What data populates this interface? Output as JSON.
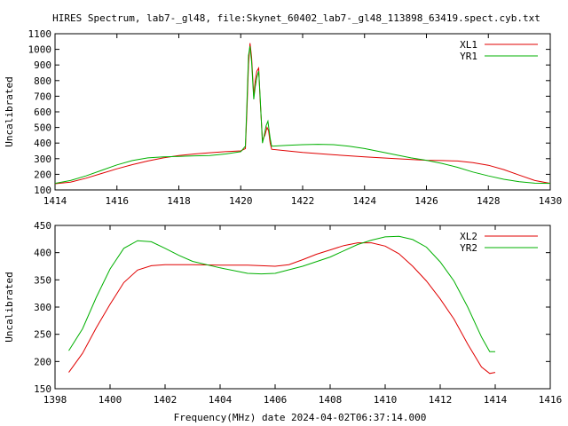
{
  "title": "HIRES Spectrum, lab7-_gl48, file:Skynet_60402_lab7-_gl48_113898_63419.spect.cyb.txt",
  "xlabel": "Frequency(MHz) date 2024-04-02T06:37:14.000",
  "colors": {
    "red": "#e00000",
    "green": "#00b000"
  },
  "chart_data": [
    {
      "type": "line",
      "ylabel": "Uncalibrated",
      "xlim": [
        1414,
        1430
      ],
      "ylim": [
        100,
        1100
      ],
      "xticks": [
        1414,
        1416,
        1418,
        1420,
        1422,
        1424,
        1426,
        1428,
        1430
      ],
      "yticks": [
        100,
        200,
        300,
        400,
        500,
        600,
        700,
        800,
        900,
        1000,
        1100
      ],
      "legend": "top-right",
      "series": [
        {
          "name": "XL1",
          "color": "#e00000",
          "points": [
            [
              1414.0,
              140
            ],
            [
              1414.5,
              150
            ],
            [
              1415,
              175
            ],
            [
              1415.5,
              205
            ],
            [
              1416,
              235
            ],
            [
              1416.5,
              262
            ],
            [
              1417,
              285
            ],
            [
              1417.5,
              305
            ],
            [
              1418,
              320
            ],
            [
              1418.5,
              330
            ],
            [
              1419,
              338
            ],
            [
              1419.5,
              345
            ],
            [
              1420.0,
              350
            ],
            [
              1420.15,
              365
            ],
            [
              1420.2,
              600
            ],
            [
              1420.25,
              900
            ],
            [
              1420.3,
              1040
            ],
            [
              1420.35,
              950
            ],
            [
              1420.42,
              700
            ],
            [
              1420.47,
              800
            ],
            [
              1420.52,
              860
            ],
            [
              1420.58,
              880
            ],
            [
              1420.62,
              700
            ],
            [
              1420.7,
              420
            ],
            [
              1420.78,
              450
            ],
            [
              1420.85,
              500
            ],
            [
              1420.9,
              480
            ],
            [
              1420.95,
              400
            ],
            [
              1421.0,
              360
            ],
            [
              1421.5,
              350
            ],
            [
              1422,
              340
            ],
            [
              1423,
              325
            ],
            [
              1424,
              312
            ],
            [
              1425,
              300
            ],
            [
              1426,
              290
            ],
            [
              1426.5,
              288
            ],
            [
              1427,
              285
            ],
            [
              1427.5,
              275
            ],
            [
              1428,
              258
            ],
            [
              1428.5,
              230
            ],
            [
              1429,
              195
            ],
            [
              1429.5,
              160
            ],
            [
              1430,
              142
            ]
          ]
        },
        {
          "name": "YR1",
          "color": "#00b000",
          "points": [
            [
              1414.0,
              142
            ],
            [
              1414.5,
              160
            ],
            [
              1415,
              190
            ],
            [
              1415.5,
              225
            ],
            [
              1416,
              260
            ],
            [
              1416.5,
              288
            ],
            [
              1417,
              305
            ],
            [
              1417.5,
              312
            ],
            [
              1418,
              315
            ],
            [
              1418.5,
              318
            ],
            [
              1419,
              320
            ],
            [
              1419.5,
              330
            ],
            [
              1420.0,
              345
            ],
            [
              1420.15,
              380
            ],
            [
              1420.2,
              650
            ],
            [
              1420.25,
              960
            ],
            [
              1420.3,
              1020
            ],
            [
              1420.35,
              920
            ],
            [
              1420.42,
              680
            ],
            [
              1420.47,
              760
            ],
            [
              1420.52,
              820
            ],
            [
              1420.58,
              860
            ],
            [
              1420.62,
              720
            ],
            [
              1420.7,
              400
            ],
            [
              1420.75,
              440
            ],
            [
              1420.82,
              510
            ],
            [
              1420.88,
              540
            ],
            [
              1420.95,
              430
            ],
            [
              1421.0,
              380
            ],
            [
              1421.5,
              385
            ],
            [
              1422,
              390
            ],
            [
              1422.5,
              392
            ],
            [
              1423,
              390
            ],
            [
              1423.5,
              380
            ],
            [
              1424,
              365
            ],
            [
              1424.5,
              345
            ],
            [
              1425,
              325
            ],
            [
              1425.5,
              305
            ],
            [
              1426,
              290
            ],
            [
              1426.5,
              270
            ],
            [
              1427,
              245
            ],
            [
              1427.5,
              215
            ],
            [
              1428,
              190
            ],
            [
              1428.5,
              168
            ],
            [
              1429,
              152
            ],
            [
              1429.5,
              143
            ],
            [
              1430,
              142
            ]
          ]
        }
      ]
    },
    {
      "type": "line",
      "ylabel": "Uncalibrated",
      "xlim": [
        1398,
        1416
      ],
      "ylim": [
        150,
        450
      ],
      "xticks": [
        1398,
        1400,
        1402,
        1404,
        1406,
        1408,
        1410,
        1412,
        1414,
        1416
      ],
      "yticks": [
        150,
        200,
        250,
        300,
        350,
        400,
        450
      ],
      "legend": "top-right",
      "series": [
        {
          "name": "XL2",
          "color": "#e00000",
          "points": [
            [
              1398.5,
              180
            ],
            [
              1399,
              215
            ],
            [
              1399.5,
              262
            ],
            [
              1400,
              305
            ],
            [
              1400.5,
              345
            ],
            [
              1401,
              368
            ],
            [
              1401.5,
              376
            ],
            [
              1402,
              378
            ],
            [
              1403,
              378
            ],
            [
              1404,
              377
            ],
            [
              1405,
              377
            ],
            [
              1405.5,
              376
            ],
            [
              1406,
              375
            ],
            [
              1406.5,
              378
            ],
            [
              1407,
              387
            ],
            [
              1407.5,
              397
            ],
            [
              1408,
              405
            ],
            [
              1408.5,
              413
            ],
            [
              1409,
              418
            ],
            [
              1409.5,
              418
            ],
            [
              1410,
              412
            ],
            [
              1410.5,
              398
            ],
            [
              1411,
              375
            ],
            [
              1411.5,
              348
            ],
            [
              1412,
              315
            ],
            [
              1412.5,
              278
            ],
            [
              1413,
              232
            ],
            [
              1413.5,
              190
            ],
            [
              1413.8,
              178
            ],
            [
              1414.0,
              180
            ]
          ]
        },
        {
          "name": "YR2",
          "color": "#00b000",
          "points": [
            [
              1398.5,
              220
            ],
            [
              1399,
              260
            ],
            [
              1399.5,
              318
            ],
            [
              1400,
              370
            ],
            [
              1400.5,
              408
            ],
            [
              1401,
              422
            ],
            [
              1401.5,
              420
            ],
            [
              1402,
              408
            ],
            [
              1402.5,
              395
            ],
            [
              1403,
              384
            ],
            [
              1404,
              372
            ],
            [
              1405,
              362
            ],
            [
              1405.5,
              361
            ],
            [
              1406,
              362
            ],
            [
              1407,
              375
            ],
            [
              1408,
              392
            ],
            [
              1409,
              415
            ],
            [
              1409.5,
              423
            ],
            [
              1410,
              429
            ],
            [
              1410.5,
              430
            ],
            [
              1411,
              424
            ],
            [
              1411.5,
              410
            ],
            [
              1412,
              383
            ],
            [
              1412.5,
              348
            ],
            [
              1413,
              300
            ],
            [
              1413.5,
              245
            ],
            [
              1413.8,
              218
            ],
            [
              1414.0,
              218
            ]
          ]
        }
      ]
    }
  ]
}
